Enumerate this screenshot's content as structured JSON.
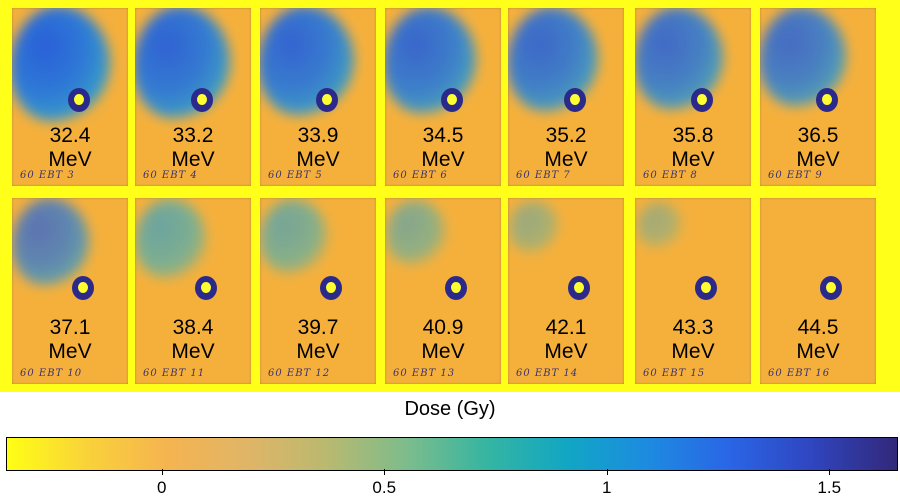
{
  "films": [
    {
      "energy": "32.4",
      "unit": "MeV",
      "note": "60   EBT 3",
      "intensity": 1.0
    },
    {
      "energy": "33.2",
      "unit": "MeV",
      "note": "60   EBT 4",
      "intensity": 0.95
    },
    {
      "energy": "33.9",
      "unit": "MeV",
      "note": "60   EBT 5",
      "intensity": 0.92
    },
    {
      "energy": "34.5",
      "unit": "MeV",
      "note": "60   EBT 6",
      "intensity": 0.88
    },
    {
      "energy": "35.2",
      "unit": "MeV",
      "note": "60   EBT 7",
      "intensity": 0.85
    },
    {
      "energy": "35.8",
      "unit": "MeV",
      "note": "60   EBT 8",
      "intensity": 0.82
    },
    {
      "energy": "36.5",
      "unit": "MeV",
      "note": "60   EBT 9",
      "intensity": 0.78
    },
    {
      "energy": "37.1",
      "unit": "MeV",
      "note": "60  EBT 10",
      "intensity": 0.62
    },
    {
      "energy": "38.4",
      "unit": "MeV",
      "note": "60  EBT 11",
      "intensity": 0.52
    },
    {
      "energy": "39.7",
      "unit": "MeV",
      "note": "60  EBT 12",
      "intensity": 0.45
    },
    {
      "energy": "40.9",
      "unit": "MeV",
      "note": "60  EBT 13",
      "intensity": 0.32
    },
    {
      "energy": "42.1",
      "unit": "MeV",
      "note": "60  EBT 14",
      "intensity": 0.14
    },
    {
      "energy": "43.3",
      "unit": "MeV",
      "note": "60  EBT 15",
      "intensity": 0.07
    },
    {
      "energy": "44.5",
      "unit": "MeV",
      "note": "60  EBT 16",
      "intensity": 0.0
    }
  ],
  "colorbar": {
    "title": "Dose (Gy)",
    "ticks": [
      {
        "value": 0,
        "label": "0"
      },
      {
        "value": 0.5,
        "label": "0.5"
      },
      {
        "value": 1,
        "label": "1"
      },
      {
        "value": 1.5,
        "label": "1.5"
      }
    ],
    "range": [
      -0.35,
      1.65
    ]
  }
}
